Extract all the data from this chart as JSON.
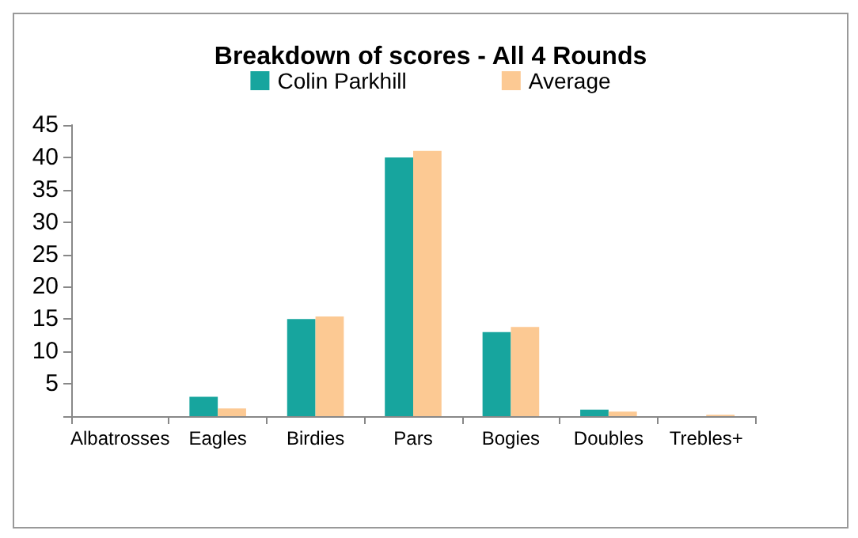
{
  "chart_data": {
    "type": "bar",
    "title": "Breakdown of scores - All 4 Rounds",
    "categories": [
      "Albatrosses",
      "Eagles",
      "Birdies",
      "Pars",
      "Bogies",
      "Doubles",
      "Trebles+"
    ],
    "series": [
      {
        "name": "Colin Parkhill",
        "color": "#17a59e",
        "values": [
          0,
          3,
          15,
          40,
          13,
          1,
          0
        ]
      },
      {
        "name": "Average",
        "color": "#fcc993",
        "values": [
          0,
          1.2,
          15.4,
          41,
          13.8,
          0.7,
          0.2
        ]
      }
    ],
    "ylim": [
      0,
      45
    ],
    "yticks": [
      {
        "value": 0,
        "label": null
      },
      5,
      10,
      15,
      20,
      25,
      30,
      35,
      40,
      45
    ],
    "grid": false,
    "legend": "top"
  }
}
